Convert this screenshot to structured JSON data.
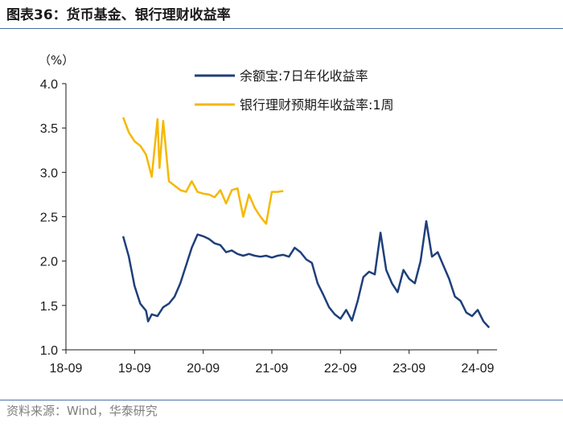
{
  "title": "图表36：货币基金、银行理财收益率",
  "source": "资料来源：Wind，华泰研究",
  "chart_data": {
    "type": "line",
    "y_unit_label": "（%）",
    "ylim": [
      1.0,
      4.0
    ],
    "y_ticks": [
      "1.0",
      "1.5",
      "2.0",
      "2.5",
      "3.0",
      "3.5",
      "4.0"
    ],
    "x_ticks": [
      "18-09",
      "19-09",
      "20-09",
      "21-09",
      "22-09",
      "23-09",
      "24-09"
    ],
    "legend_position": "top-center",
    "series": [
      {
        "name": "余额宝:7日年化收益率",
        "color": "#1f3f7a",
        "points": [
          [
            "2019-07",
            2.28
          ],
          [
            "2019-08",
            2.05
          ],
          [
            "2019-09",
            1.72
          ],
          [
            "2019-10",
            1.52
          ],
          [
            "2019-11",
            1.44
          ],
          [
            "2019-11",
            1.32
          ],
          [
            "2019-12",
            1.4
          ],
          [
            "2020-01",
            1.38
          ],
          [
            "2020-02",
            1.48
          ],
          [
            "2020-03",
            1.52
          ],
          [
            "2020-04",
            1.6
          ],
          [
            "2020-05",
            1.75
          ],
          [
            "2020-06",
            1.95
          ],
          [
            "2020-07",
            2.15
          ],
          [
            "2020-08",
            2.3
          ],
          [
            "2020-09",
            2.28
          ],
          [
            "2020-10",
            2.25
          ],
          [
            "2020-11",
            2.2
          ],
          [
            "2020-12",
            2.18
          ],
          [
            "2021-01",
            2.1
          ],
          [
            "2021-02",
            2.12
          ],
          [
            "2021-03",
            2.08
          ],
          [
            "2021-04",
            2.06
          ],
          [
            "2021-05",
            2.08
          ],
          [
            "2021-06",
            2.06
          ],
          [
            "2021-07",
            2.05
          ],
          [
            "2021-08",
            2.06
          ],
          [
            "2021-09",
            2.04
          ],
          [
            "2021-10",
            2.06
          ],
          [
            "2021-11",
            2.07
          ],
          [
            "2021-12",
            2.05
          ],
          [
            "2022-01",
            2.15
          ],
          [
            "2022-02",
            2.1
          ],
          [
            "2022-03",
            2.02
          ],
          [
            "2022-04",
            1.98
          ],
          [
            "2022-05",
            1.75
          ],
          [
            "2022-06",
            1.62
          ],
          [
            "2022-07",
            1.48
          ],
          [
            "2022-08",
            1.4
          ],
          [
            "2022-09",
            1.35
          ],
          [
            "2022-10",
            1.45
          ],
          [
            "2022-11",
            1.33
          ],
          [
            "2022-12",
            1.55
          ],
          [
            "2023-01",
            1.82
          ],
          [
            "2023-02",
            1.88
          ],
          [
            "2023-03",
            1.85
          ],
          [
            "2023-04",
            2.32
          ],
          [
            "2023-05",
            1.9
          ],
          [
            "2023-06",
            1.75
          ],
          [
            "2023-07",
            1.65
          ],
          [
            "2023-08",
            1.9
          ],
          [
            "2023-09",
            1.8
          ],
          [
            "2023-10",
            1.75
          ],
          [
            "2023-11",
            2.0
          ],
          [
            "2023-12",
            2.45
          ],
          [
            "2024-01",
            2.05
          ],
          [
            "2024-02",
            2.1
          ],
          [
            "2024-03",
            1.95
          ],
          [
            "2024-04",
            1.8
          ],
          [
            "2024-05",
            1.6
          ],
          [
            "2024-06",
            1.55
          ],
          [
            "2024-07",
            1.42
          ],
          [
            "2024-08",
            1.38
          ],
          [
            "2024-09",
            1.45
          ],
          [
            "2024-10",
            1.32
          ],
          [
            "2024-11",
            1.25
          ]
        ]
      },
      {
        "name": "银行理财预期年收益率:1周",
        "color": "#f5b800",
        "points": [
          [
            "2019-07",
            3.62
          ],
          [
            "2019-08",
            3.45
          ],
          [
            "2019-09",
            3.35
          ],
          [
            "2019-10",
            3.3
          ],
          [
            "2019-11",
            3.2
          ],
          [
            "2019-12",
            2.95
          ],
          [
            "2020-01",
            3.6
          ],
          [
            "2020-01",
            3.05
          ],
          [
            "2020-02",
            3.58
          ],
          [
            "2020-03",
            2.9
          ],
          [
            "2020-04",
            2.85
          ],
          [
            "2020-05",
            2.8
          ],
          [
            "2020-06",
            2.78
          ],
          [
            "2020-07",
            2.9
          ],
          [
            "2020-08",
            2.78
          ],
          [
            "2020-09",
            2.76
          ],
          [
            "2020-10",
            2.75
          ],
          [
            "2020-11",
            2.72
          ],
          [
            "2020-12",
            2.8
          ],
          [
            "2021-01",
            2.65
          ],
          [
            "2021-02",
            2.8
          ],
          [
            "2021-03",
            2.82
          ],
          [
            "2021-04",
            2.5
          ],
          [
            "2021-05",
            2.75
          ],
          [
            "2021-06",
            2.6
          ],
          [
            "2021-07",
            2.5
          ],
          [
            "2021-08",
            2.42
          ],
          [
            "2021-09",
            2.78
          ],
          [
            "2021-10",
            2.78
          ],
          [
            "2021-11",
            2.79
          ]
        ]
      }
    ]
  }
}
